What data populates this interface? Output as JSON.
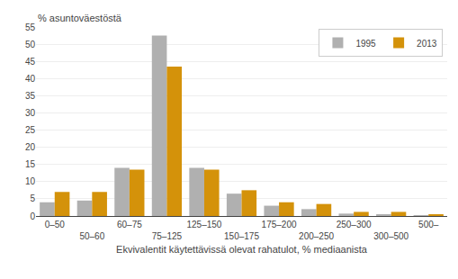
{
  "chart_data": {
    "type": "bar",
    "categories": [
      "0–50",
      "50–60",
      "60–75",
      "75–125",
      "125–150",
      "150–175",
      "175–200",
      "200–250",
      "250–300",
      "300–500",
      "500–"
    ],
    "series": [
      {
        "name": "1995",
        "color": "#b0b0b0",
        "values": [
          4.0,
          4.5,
          14.0,
          52.5,
          14.0,
          6.5,
          3.0,
          2.0,
          0.7,
          0.5,
          0.1
        ]
      },
      {
        "name": "2013",
        "color": "#d4920a",
        "values": [
          7.0,
          7.0,
          13.5,
          43.5,
          13.5,
          7.5,
          4.0,
          3.5,
          1.2,
          1.2,
          0.5
        ]
      }
    ],
    "ylabel": "% asuntoväestöstä",
    "xlabel": "Ekvivalentit käytettävissä olevat rahatulot, % mediaanista",
    "ylim": [
      0,
      55
    ],
    "yticks": [
      0,
      5,
      10,
      15,
      20,
      25,
      30,
      35,
      40,
      45,
      50,
      55
    ],
    "grid": true,
    "legend": "upper right"
  }
}
